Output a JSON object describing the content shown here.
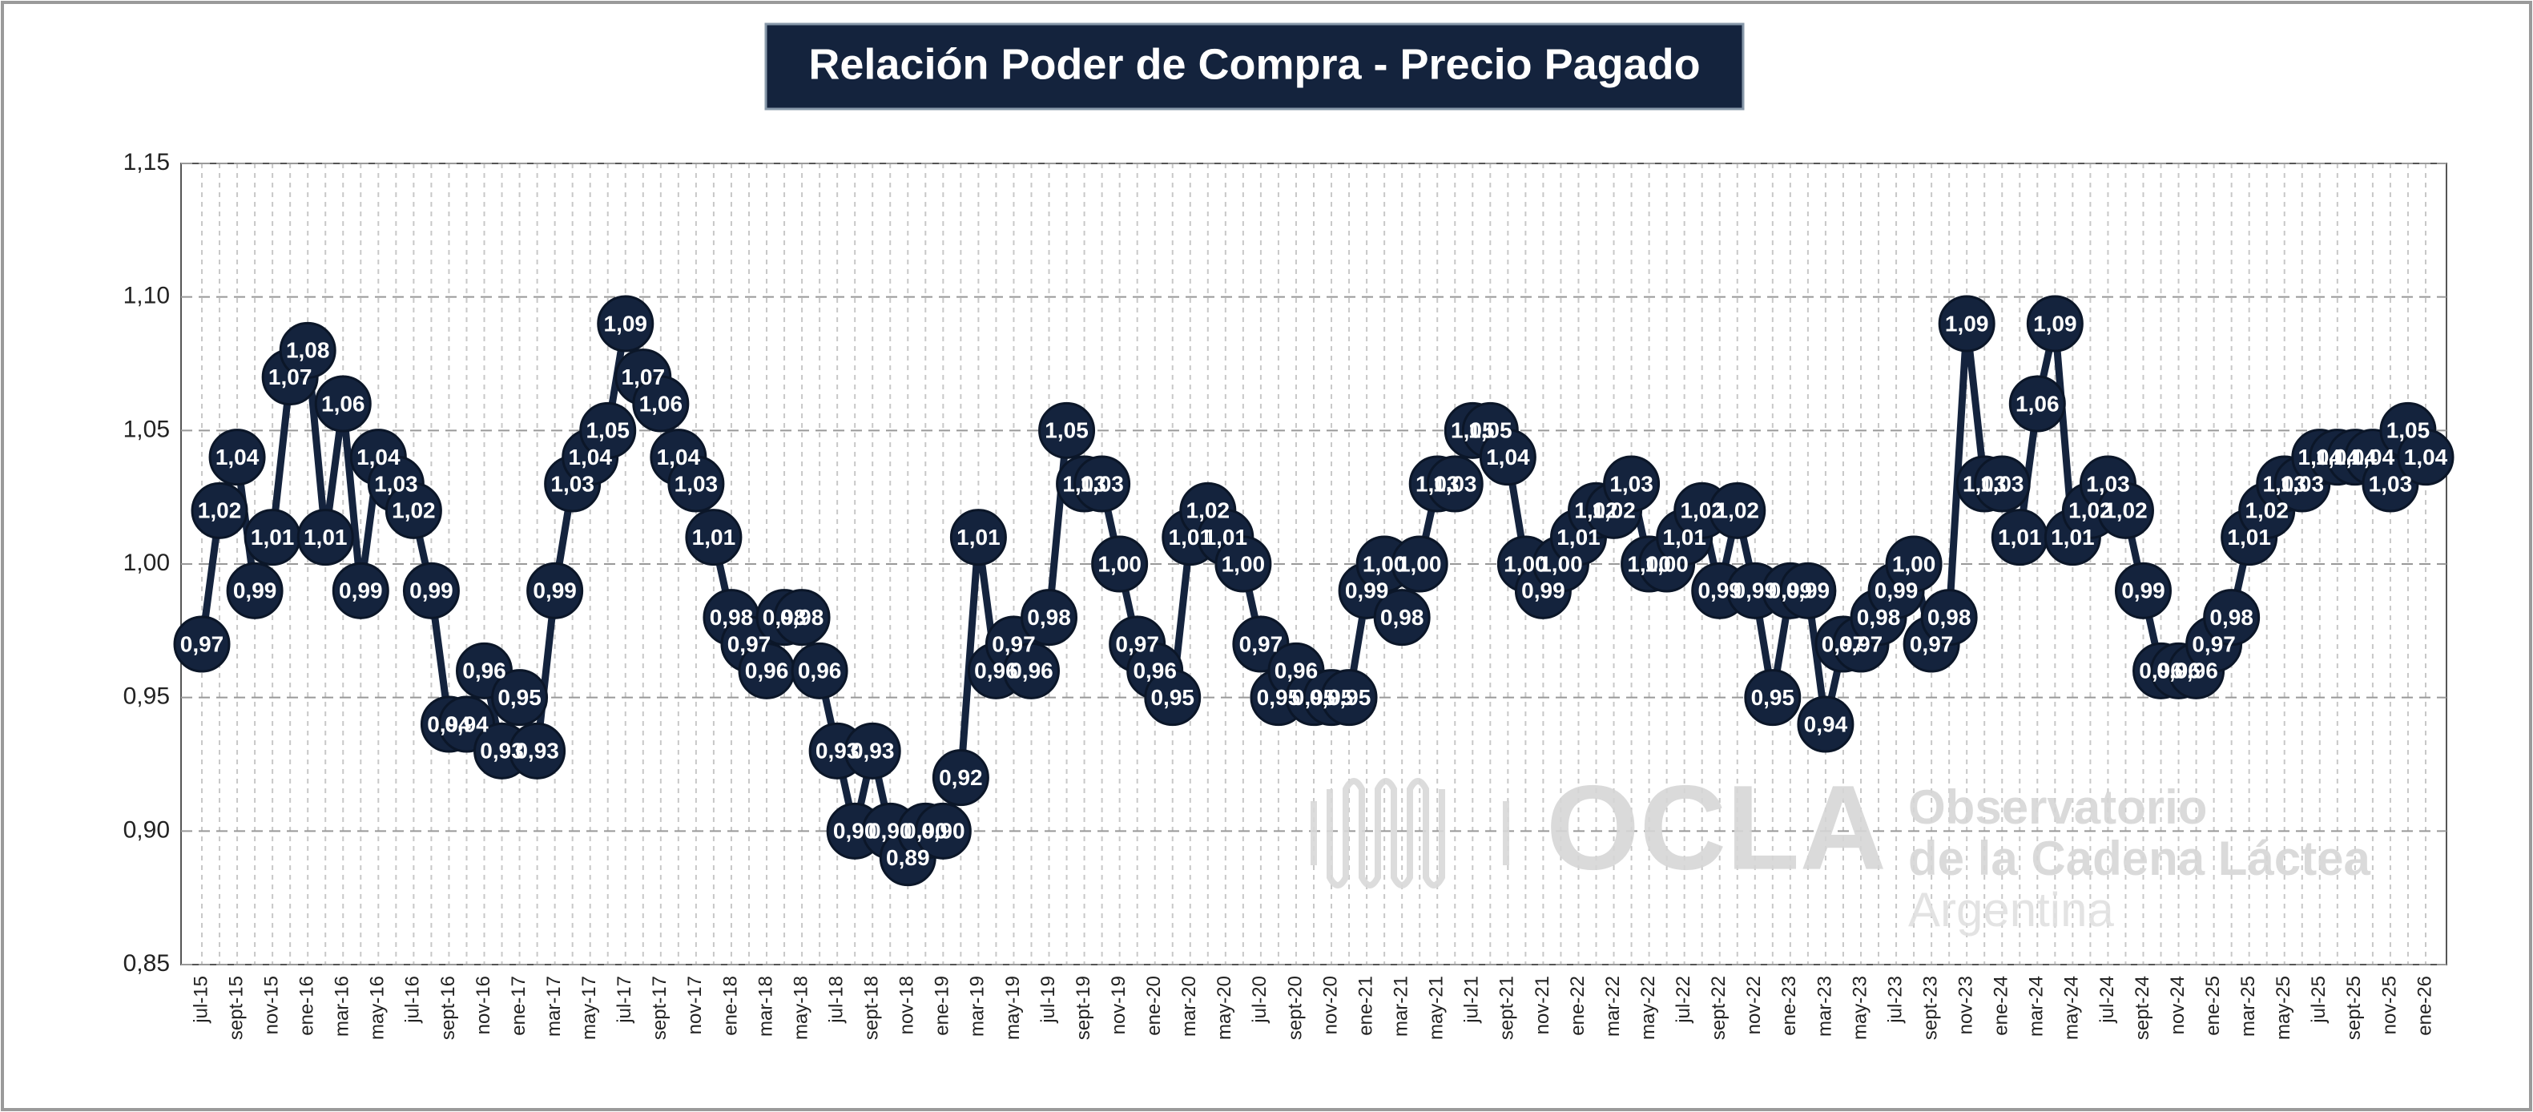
{
  "chart_data": {
    "type": "line",
    "title": "Relación Poder de Compra - Precio Pagado",
    "annotations": [
      "OCLA",
      "Observatorio",
      "de la Cadena Láctea",
      "Argentina"
    ],
    "color": "#14233d",
    "grid": true,
    "ylim": [
      0.85,
      1.15
    ],
    "yticks": [
      {
        "value": 0.85,
        "label": "0,85"
      },
      {
        "value": 0.9,
        "label": "0,90"
      },
      {
        "value": 0.95,
        "label": "0,95"
      },
      {
        "value": 1.0,
        "label": "1,00"
      },
      {
        "value": 1.05,
        "label": "1,05"
      },
      {
        "value": 1.1,
        "label": "1,10"
      },
      {
        "value": 1.15,
        "label": "1,15"
      }
    ],
    "categories": [
      "jul-15",
      null,
      "sept-15",
      null,
      "nov-15",
      null,
      "ene-16",
      null,
      "mar-16",
      null,
      "may-16",
      null,
      "jul-16",
      null,
      "sept-16",
      null,
      "nov-16",
      null,
      "ene-17",
      null,
      "mar-17",
      null,
      "may-17",
      null,
      "jul-17",
      null,
      "sept-17",
      null,
      "nov-17",
      null,
      "ene-18",
      null,
      "mar-18",
      null,
      "may-18",
      null,
      "jul-18",
      null,
      "sept-18",
      null,
      "nov-18",
      null,
      "ene-19",
      null,
      "mar-19",
      null,
      "may-19",
      null,
      "jul-19",
      null,
      "sept-19",
      null,
      "nov-19",
      null,
      "ene-20",
      null,
      "mar-20",
      null,
      "may-20",
      null,
      "jul-20",
      null,
      "sept-20",
      null,
      "nov-20",
      null,
      "ene-21",
      null,
      "mar-21",
      null,
      "may-21",
      null,
      "jul-21",
      null,
      "sept-21",
      null,
      "nov-21",
      null,
      "ene-22",
      null,
      "mar-22",
      null,
      "may-22",
      null,
      "jul-22",
      null,
      "sept-22",
      null,
      "nov-22",
      null,
      "ene-23",
      null,
      "mar-23",
      null,
      "may-23",
      null,
      "jul-23",
      null,
      "sept-23",
      null,
      "nov-23",
      null,
      "ene-24",
      null,
      "mar-24",
      null,
      "may-24",
      null,
      "jul-24",
      null,
      "sept-24",
      null,
      "nov-24",
      null,
      "ene-25",
      null,
      "mar-25",
      null,
      "may-25",
      null,
      "jul-25",
      null,
      "sept-25",
      null,
      "nov-25",
      null,
      "ene-26"
    ],
    "values": [
      0.97,
      1.02,
      1.04,
      0.99,
      1.01,
      1.07,
      1.08,
      1.01,
      1.06,
      0.99,
      1.04,
      1.03,
      1.02,
      0.99,
      0.94,
      0.94,
      0.96,
      0.93,
      0.95,
      0.93,
      0.99,
      1.03,
      1.04,
      1.05,
      1.09,
      1.07,
      1.06,
      1.04,
      1.03,
      1.01,
      0.98,
      0.97,
      0.96,
      0.98,
      0.98,
      0.96,
      0.93,
      0.9,
      0.93,
      0.9,
      0.89,
      0.9,
      0.9,
      0.92,
      1.01,
      0.96,
      0.97,
      0.96,
      0.98,
      1.05,
      1.03,
      1.03,
      1.0,
      0.97,
      0.96,
      0.95,
      1.01,
      1.02,
      1.01,
      1.0,
      0.97,
      0.95,
      0.96,
      0.95,
      0.95,
      0.95,
      0.99,
      1.0,
      0.98,
      1.0,
      1.03,
      1.03,
      1.05,
      1.05,
      1.04,
      1.0,
      0.99,
      1.0,
      1.01,
      1.02,
      1.02,
      1.03,
      1.0,
      1.0,
      1.01,
      1.02,
      0.99,
      1.02,
      0.99,
      0.95,
      0.99,
      0.99,
      0.94,
      0.97,
      0.97,
      0.98,
      0.99,
      1.0,
      0.97,
      0.98,
      1.09,
      1.03,
      1.03,
      1.01,
      1.06,
      1.09,
      1.01,
      1.02,
      1.03,
      1.02,
      0.99,
      0.96,
      0.96,
      0.96,
      0.97,
      0.98,
      1.01,
      1.02,
      1.03,
      1.03,
      1.04,
      1.04,
      1.04,
      1.04,
      1.03,
      1.05,
      1.04
    ],
    "value_labels": [
      "0,97",
      "1,02",
      "1,04",
      "0,99",
      "1,01",
      "1,07",
      "1,08",
      "1,01",
      "1,06",
      "0,99",
      "1,04",
      "1,03",
      "1,02",
      "0,99",
      "0,94",
      "0,94",
      "0,96",
      "0,93",
      "0,95",
      "0,93",
      "0,99",
      "1,03",
      "1,04",
      "1,05",
      "1,09",
      "1,07",
      "1,06",
      "1,04",
      "1,03",
      "1,01",
      "0,98",
      "0,97",
      "0,96",
      "0,98",
      "0,98",
      "0,96",
      "0,93",
      "0,90",
      "0,93",
      "0,90",
      "0,89",
      "0,90",
      "0,90",
      "0,92",
      "1,01",
      "0,96",
      "0,97",
      "0,96",
      "0,98",
      "1,05",
      "1,03",
      "1,03",
      "1,00",
      "0,97",
      "0,96",
      "0,95",
      "1,01",
      "1,02",
      "1,01",
      "1,00",
      "0,97",
      "0,95",
      "0,96",
      "0,95",
      "0,95",
      "0,95",
      "0,99",
      "1,00",
      "0,98",
      "1,00",
      "1,03",
      "1,03",
      "1,05",
      "1,05",
      "1,04",
      "1,00",
      "0,99",
      "1,00",
      "1,01",
      "1,02",
      "1,02",
      "1,03",
      "1,00",
      "1,00",
      "1,01",
      "1,02",
      "0,99",
      "1,02",
      "0,99",
      "0,95",
      "0,99",
      "0,99",
      "0,94",
      "0,97",
      "0,97",
      "0,98",
      "0,99",
      "1,00",
      "0,97",
      "0,98",
      "1,09",
      "1,03",
      "1,03",
      "1,01",
      "1,06",
      "1,09",
      "1,01",
      "1,02",
      "1,03",
      "1,02",
      "0,99",
      "0,96",
      "0,96",
      "0,96",
      "0,97",
      "0,98",
      "1,01",
      "1,02",
      "1,03",
      "1,03",
      "1,04",
      "1,04",
      "1,04",
      "1,04",
      "1,03",
      "1,05",
      "1,04"
    ]
  }
}
